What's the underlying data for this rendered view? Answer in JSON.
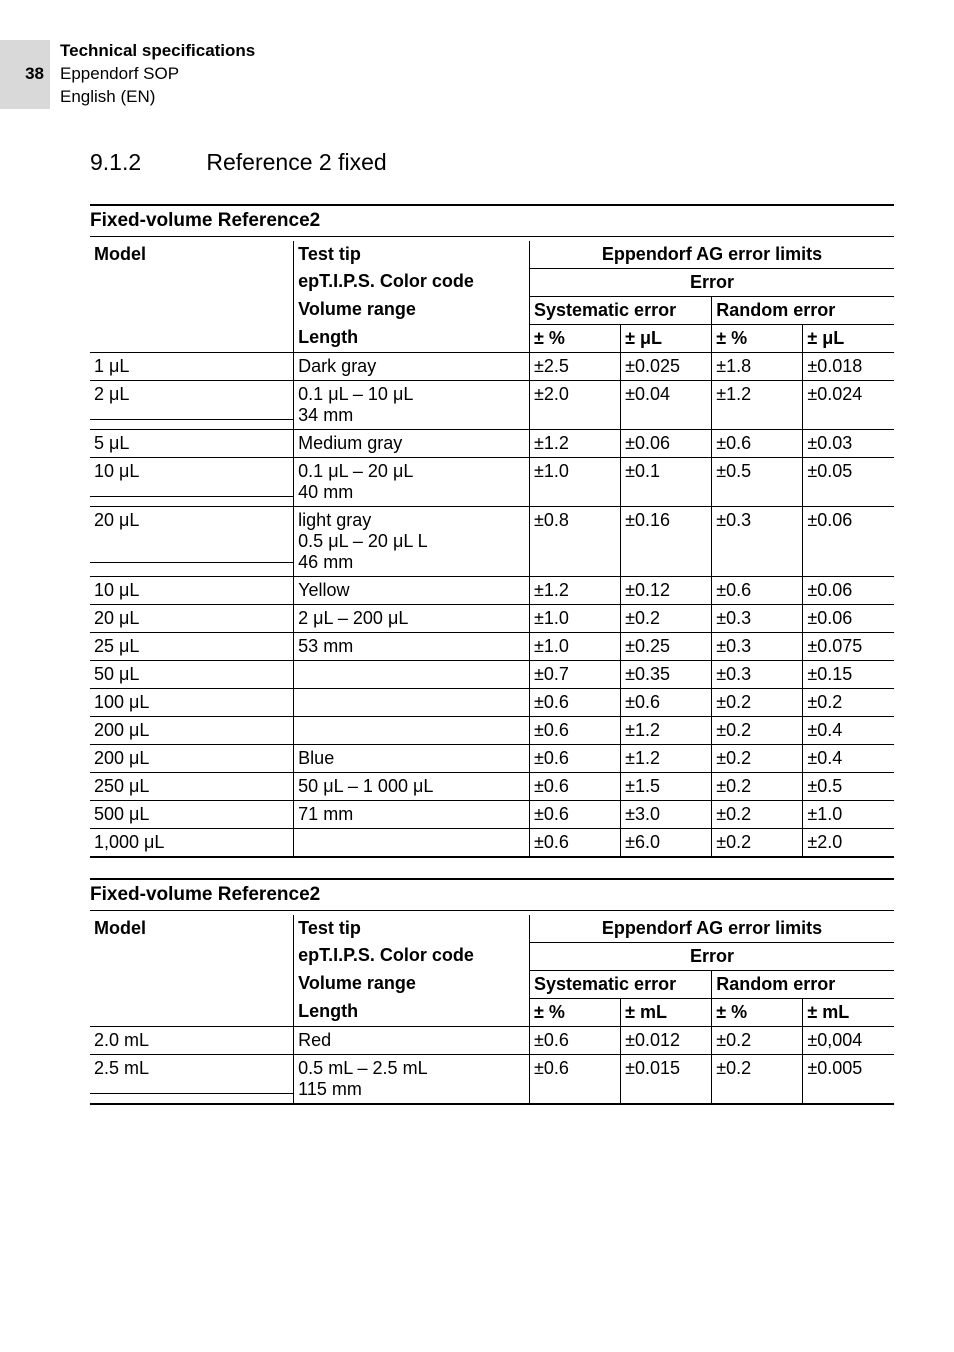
{
  "page": {
    "number": "38",
    "header_line1": "Technical specifications",
    "header_line2": "Eppendorf SOP",
    "header_line3": "English (EN)"
  },
  "section": {
    "num": "9.1.2",
    "title": "Reference 2 fixed"
  },
  "t1": {
    "title": "Fixed-volume Reference2",
    "h_model": "Model",
    "h_tip": "Test tip",
    "h_limits": "Eppendorf AG error limits",
    "h_color": "epT.I.P.S. Color code",
    "h_error": "Error",
    "h_vol": "Volume range",
    "h_sys": "Systematic error",
    "h_rand": "Random error",
    "h_len": "Length",
    "h_pct": "± %",
    "h_ul": "± μL",
    "g1": {
      "c": "Dark gray",
      "v": "0.1 μL – 10 μL",
      "l": "34 mm"
    },
    "g2": {
      "c": "Medium gray",
      "v": "0.1 μL – 20 μL",
      "l": "40 mm"
    },
    "g3": {
      "c": "light gray",
      "v": "0.5 μL – 20 μL L",
      "l": "46 mm"
    },
    "g4": {
      "c": "Yellow",
      "v": "2 μL – 200 μL",
      "l": "53 mm"
    },
    "g5": {
      "c": "Blue",
      "v": "50 μL – 1 000 μL",
      "l": "71 mm"
    },
    "r": [
      {
        "m": "1 μL",
        "sp": "±2.5",
        "su": "±0.025",
        "rp": "±1.8",
        "ru": "±0.018"
      },
      {
        "m": "2 μL",
        "sp": "±2.0",
        "su": "±0.04",
        "rp": "±1.2",
        "ru": "±0.024"
      },
      {
        "m": "5 μL",
        "sp": "±1.2",
        "su": "±0.06",
        "rp": "±0.6",
        "ru": "±0.03"
      },
      {
        "m": "10 μL",
        "sp": "±1.0",
        "su": "±0.1",
        "rp": "±0.5",
        "ru": "±0.05"
      },
      {
        "m": "20 μL",
        "sp": "±0.8",
        "su": "±0.16",
        "rp": "±0.3",
        "ru": "±0.06"
      },
      {
        "m": "10 μL",
        "sp": "±1.2",
        "su": "±0.12",
        "rp": "±0.6",
        "ru": "±0.06"
      },
      {
        "m": "20 μL",
        "sp": "±1.0",
        "su": "±0.2",
        "rp": "±0.3",
        "ru": "±0.06"
      },
      {
        "m": "25 μL",
        "sp": "±1.0",
        "su": "±0.25",
        "rp": "±0.3",
        "ru": "±0.075"
      },
      {
        "m": "50 μL",
        "sp": "±0.7",
        "su": "±0.35",
        "rp": "±0.3",
        "ru": "±0.15"
      },
      {
        "m": "100 μL",
        "sp": "±0.6",
        "su": "±0.6",
        "rp": "±0.2",
        "ru": "±0.2"
      },
      {
        "m": "200 μL",
        "sp": "±0.6",
        "su": "±1.2",
        "rp": "±0.2",
        "ru": "±0.4"
      },
      {
        "m": "200 μL",
        "sp": "±0.6",
        "su": "±1.2",
        "rp": "±0.2",
        "ru": "±0.4"
      },
      {
        "m": "250 μL",
        "sp": "±0.6",
        "su": "±1.5",
        "rp": "±0.2",
        "ru": "±0.5"
      },
      {
        "m": "500 μL",
        "sp": "±0.6",
        "su": "±3.0",
        "rp": "±0.2",
        "ru": "±1.0"
      },
      {
        "m": "1,000 μL",
        "sp": "±0.6",
        "su": "±6.0",
        "rp": "±0.2",
        "ru": "±2.0"
      }
    ]
  },
  "t2": {
    "title": "Fixed-volume Reference2",
    "h_model": "Model",
    "h_tip": "Test tip",
    "h_limits": "Eppendorf AG error limits",
    "h_color": "epT.I.P.S. Color code",
    "h_error": "Error",
    "h_vol": "Volume range",
    "h_sys": "Systematic error",
    "h_rand": "Random error",
    "h_len": "Length",
    "h_pct": "± %",
    "h_ml": "± mL",
    "g1": {
      "c": "Red",
      "v": "0.5 mL – 2.5 mL",
      "l": "115 mm"
    },
    "r": [
      {
        "m": "2.0 mL",
        "sp": "±0.6",
        "su": "±0.012",
        "rp": "±0.2",
        "ru": "±0,004"
      },
      {
        "m": "2.5 mL",
        "sp": "±0.6",
        "su": "±0.015",
        "rp": "±0.2",
        "ru": "±0.005"
      }
    ]
  }
}
